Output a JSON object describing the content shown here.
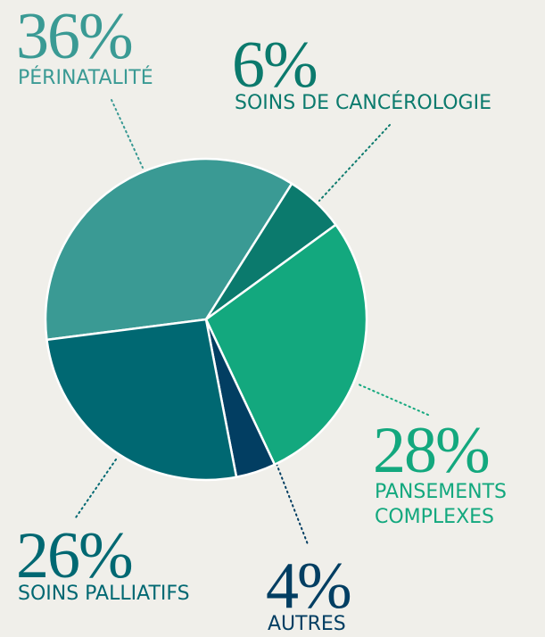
{
  "chart_data": {
    "type": "pie",
    "categories": [
      "PÉRINATALITÉ",
      "SOINS DE CANCÉROLOGIE",
      "PANSEMENTS COMPLEXES",
      "AUTRES",
      "SOINS PALLIATIFS"
    ],
    "values": [
      36,
      6,
      28,
      4,
      26
    ],
    "value_labels": [
      "36%",
      "6%",
      "28%",
      "4%",
      "26%"
    ],
    "colors": [
      "#3a9a94",
      "#0b7a6d",
      "#13a87e",
      "#023e62",
      "#006872"
    ]
  }
}
